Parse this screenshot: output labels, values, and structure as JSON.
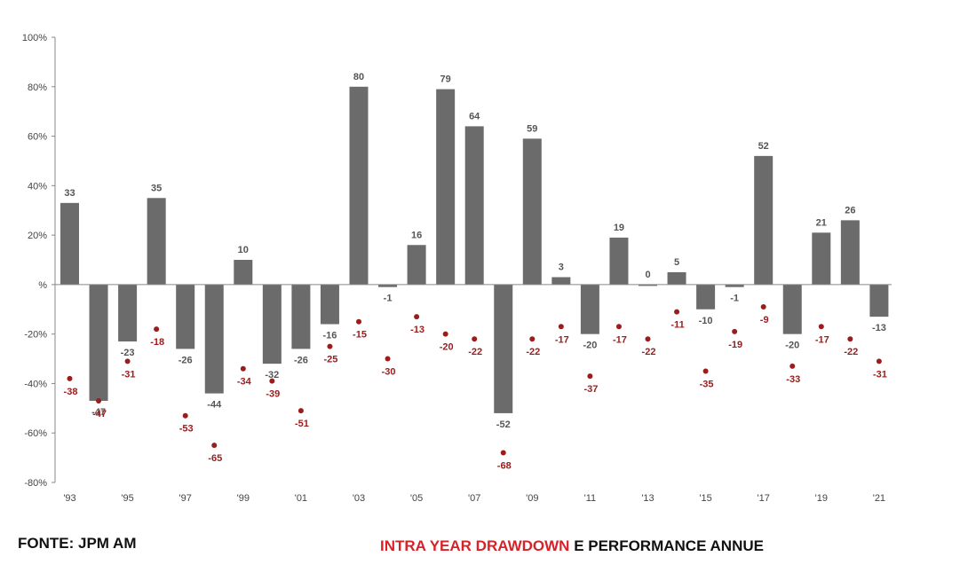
{
  "chart_data": {
    "type": "bar",
    "categories": [
      "'93",
      "'94",
      "'95",
      "'96",
      "'97",
      "'98",
      "'99",
      "'00",
      "'01",
      "'02",
      "'03",
      "'04",
      "'05",
      "'06",
      "'07",
      "'08",
      "'09",
      "'10",
      "'11",
      "'12",
      "'13",
      "'14",
      "'15",
      "'16",
      "'17",
      "'18",
      "'19",
      "'20",
      "'21"
    ],
    "x_tick_labels": [
      "'93",
      "'95",
      "'97",
      "'99",
      "'01",
      "'03",
      "'05",
      "'07",
      "'09",
      "'11",
      "'13",
      "'15",
      "'17",
      "'19",
      "'21"
    ],
    "series": [
      {
        "values": [
          33,
          -47,
          -23,
          35,
          -26,
          -44,
          10,
          -32,
          -26,
          -16,
          80,
          -1,
          16,
          79,
          64,
          -52,
          59,
          3,
          -20,
          19,
          0,
          5,
          -10,
          -1,
          52,
          -20,
          21,
          26,
          -13
        ],
        "color": "#6b6b6b",
        "mark": "bar"
      },
      {
        "values": [
          -38,
          -47,
          -31,
          -18,
          -53,
          -65,
          -34,
          -39,
          -51,
          -25,
          -15,
          -30,
          -13,
          -20,
          -22,
          -68,
          -22,
          -17,
          -37,
          -17,
          -22,
          -11,
          -35,
          -19,
          -9,
          -33,
          -17,
          -22,
          -31
        ],
        "color": "#9b1c1c",
        "mark": "dot"
      }
    ],
    "y_ticks": [
      "100%",
      "80%",
      "60%",
      "40%",
      "20%",
      "%",
      "-20%",
      "-40%",
      "-60%",
      "-80%"
    ],
    "ylim": [
      -80,
      100
    ],
    "grid": false
  },
  "footer": {
    "source": "FONTE: JPM AM",
    "caption_red": "INTRA YEAR DRAWDOWN",
    "caption_dark": "E PERFORMANCE ANNUE"
  },
  "colors": {
    "accent_red": "#d6232a"
  }
}
